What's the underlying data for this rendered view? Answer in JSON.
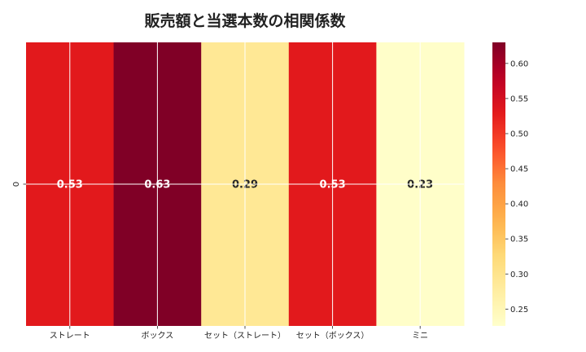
{
  "chart_data": {
    "type": "heatmap",
    "title": "販売額と当選本数の相関係数",
    "x_categories": [
      "ストレート",
      "ボックス",
      "セット（ストレート）",
      "セット（ボックス）",
      "ミニ"
    ],
    "y_categories": [
      "0"
    ],
    "values": [
      [
        0.53,
        0.63,
        0.29,
        0.53,
        0.23
      ]
    ],
    "value_labels": [
      "0.53",
      "0.63",
      "0.29",
      "0.53",
      "0.23"
    ],
    "colorbar": {
      "colormap": "YlOrRd",
      "range": [
        0.226,
        0.63
      ],
      "ticks": [
        "0.25",
        "0.30",
        "0.35",
        "0.40",
        "0.45",
        "0.50",
        "0.55",
        "0.60"
      ],
      "tick_values": [
        0.25,
        0.3,
        0.35,
        0.4,
        0.45,
        0.5,
        0.55,
        0.6
      ],
      "placement": "right"
    },
    "grid": true,
    "xlabel": "",
    "ylabel": ""
  }
}
